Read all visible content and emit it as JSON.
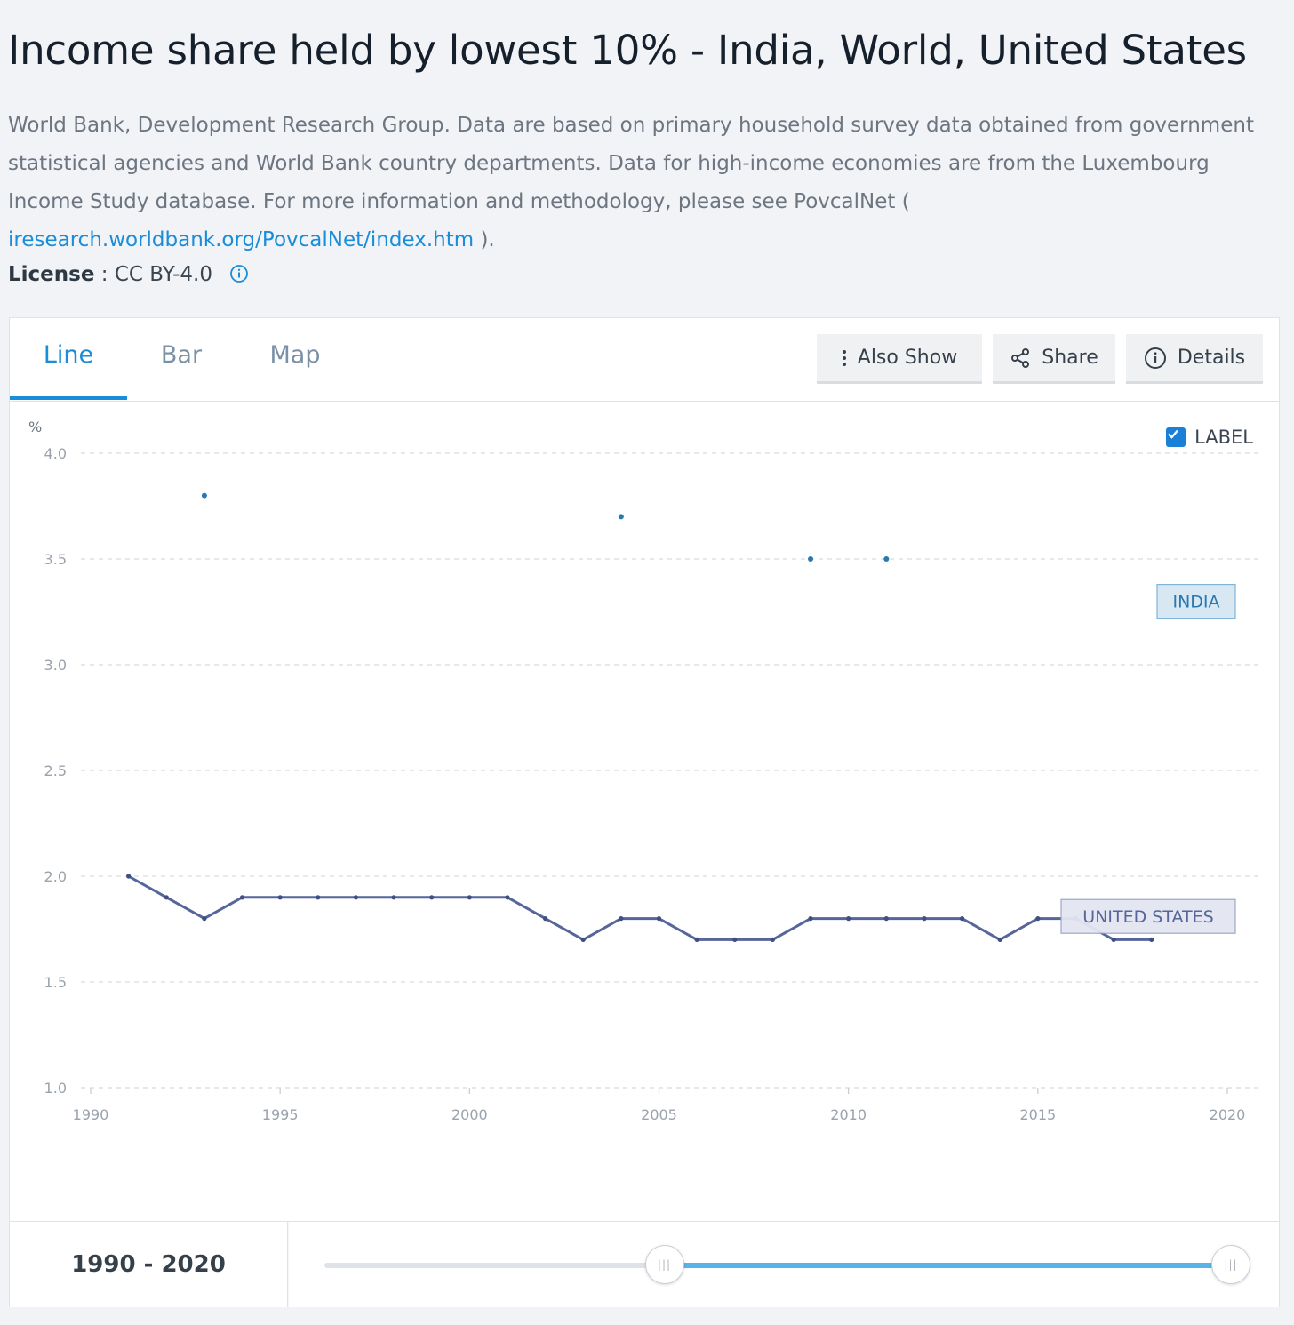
{
  "page": {
    "title": "Income share held by lowest 10% - India, World, United States",
    "description": "World Bank, Development Research Group. Data are based on primary household survey data obtained from government statistical agencies and World Bank country departments. Data for high-income economies are from the Luxembourg Income Study database. For more information and methodology, please see PovcalNet (",
    "link_text": "iresearch.worldbank.org/PovcalNet/index.htm",
    "description_end": " ).",
    "license_label": "License",
    "license_sep": " : ",
    "license_value": "CC BY-4.0"
  },
  "tabs": [
    {
      "label": "Line",
      "active": true
    },
    {
      "label": "Bar",
      "active": false
    },
    {
      "label": "Map",
      "active": false
    }
  ],
  "buttons": {
    "also_show": "Also Show",
    "share": "Share",
    "details": "Details"
  },
  "label_toggle": {
    "label": "LABEL",
    "checked": true
  },
  "range": {
    "label": "1990 - 2020",
    "start_fraction": 0.375,
    "end_fraction": 1.0
  },
  "colors": {
    "accent": "#1a8dd9",
    "india": "#2a78b0",
    "united_states": "#56669a",
    "grid": "#d8dce1"
  },
  "chart_data": {
    "type": "line",
    "ylabel": "%",
    "ylim": [
      1.0,
      4.0
    ],
    "xlim": [
      1990,
      2020
    ],
    "yticks": [
      "4.0",
      "3.5",
      "3.0",
      "2.5",
      "2.0",
      "1.5",
      "1.0"
    ],
    "xticks": [
      "1990",
      "1995",
      "2000",
      "2005",
      "2010",
      "2015",
      "2020"
    ],
    "grid": true,
    "series": [
      {
        "name": "INDIA",
        "points": [
          [
            1993,
            3.8
          ],
          [
            2004,
            3.7
          ],
          [
            2009,
            3.5
          ],
          [
            2011,
            3.5
          ]
        ]
      },
      {
        "name": "UNITED STATES",
        "points": [
          [
            1991,
            2.0
          ],
          [
            1992,
            1.9
          ],
          [
            1993,
            1.8
          ],
          [
            1994,
            1.9
          ],
          [
            1995,
            1.9
          ],
          [
            1996,
            1.9
          ],
          [
            1997,
            1.9
          ],
          [
            1998,
            1.9
          ],
          [
            1999,
            1.9
          ],
          [
            2000,
            1.9
          ],
          [
            2001,
            1.9
          ],
          [
            2002,
            1.8
          ],
          [
            2003,
            1.7
          ],
          [
            2004,
            1.8
          ],
          [
            2005,
            1.8
          ],
          [
            2006,
            1.7
          ],
          [
            2007,
            1.7
          ],
          [
            2008,
            1.7
          ],
          [
            2009,
            1.8
          ],
          [
            2010,
            1.8
          ],
          [
            2011,
            1.8
          ],
          [
            2012,
            1.8
          ],
          [
            2013,
            1.8
          ],
          [
            2014,
            1.7
          ],
          [
            2015,
            1.8
          ],
          [
            2016,
            1.8
          ],
          [
            2017,
            1.7
          ],
          [
            2018,
            1.7
          ]
        ]
      }
    ]
  }
}
